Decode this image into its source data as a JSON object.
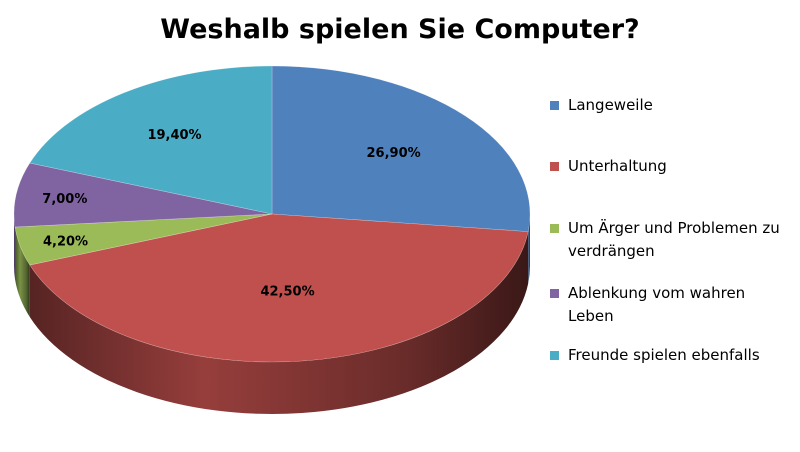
{
  "chart_data": {
    "type": "pie",
    "title": "Weshalb spielen Sie Computer?",
    "categories": [
      "Langeweile",
      "Unterhaltung",
      "Um Ärger und Problemen zu verdrängen",
      "Ablenkung vom wahren Leben",
      "Freunde spielen ebenfalls"
    ],
    "values": [
      26.9,
      42.5,
      4.2,
      7.0,
      19.4
    ],
    "data_labels": [
      "26,90%",
      "42,50%",
      "4,20%",
      "7,00%",
      "19,40%"
    ],
    "colors": [
      "#4F81BD",
      "#C0504D",
      "#9BBB59",
      "#8064A2",
      "#4BACC6"
    ],
    "legend_position": "right",
    "style": "3d"
  }
}
